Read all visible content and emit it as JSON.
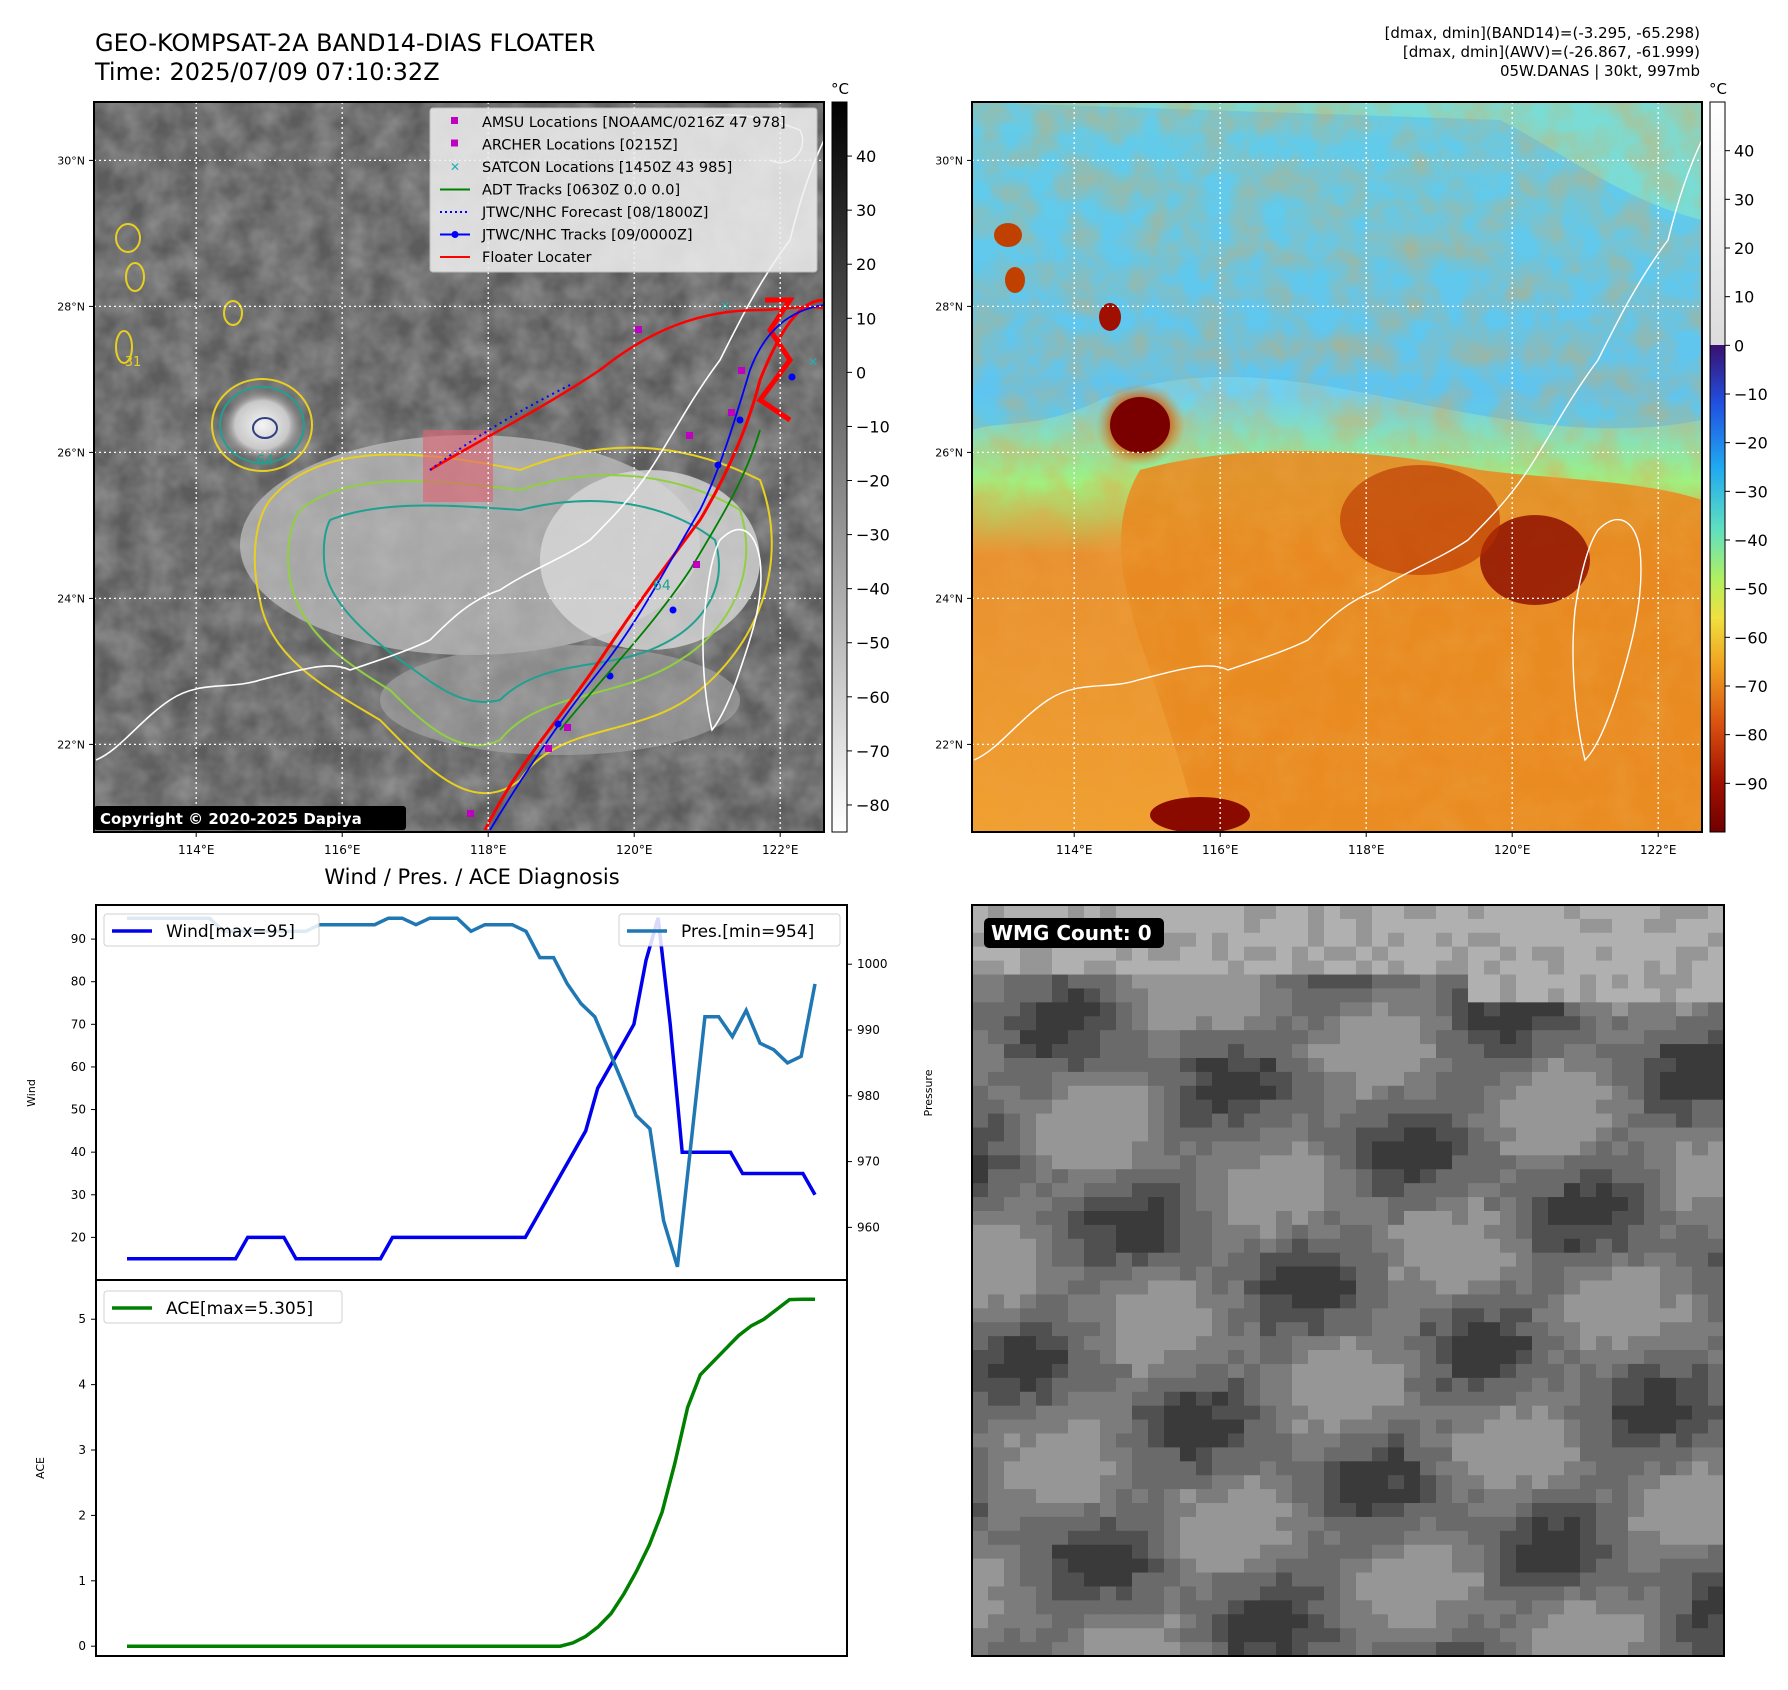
{
  "header": {
    "title_line1": "GEO-KOMPSAT-2A BAND14-DIAS FLOATER",
    "title_line2": "Time: 2025/07/09 07:10:32Z",
    "info_line1": "[dmax, dmin](BAND14)=(-3.295, -65.298)",
    "info_line2": "[dmax, dmin](AWV)=(-26.867, -61.999)",
    "info_line3": "05W.DANAS | 30kt, 997mb"
  },
  "maps": {
    "lat_labels": [
      "30°N",
      "28°N",
      "26°N",
      "24°N",
      "22°N"
    ],
    "lon_labels": [
      "114°E",
      "116°E",
      "118°E",
      "120°E",
      "122°E"
    ],
    "lat_values": [
      30,
      28,
      26,
      24,
      22
    ],
    "lon_values": [
      114,
      116,
      118,
      120,
      122
    ],
    "lat_range": [
      20.8,
      30.8
    ],
    "lon_range": [
      112.6,
      122.6
    ],
    "copyright": "Copyright © 2020-2025 Dapiya",
    "colorbar_unit": "°C",
    "left_colorbar_ticks": [
      40,
      30,
      20,
      10,
      0,
      -10,
      -20,
      -30,
      -40,
      -50,
      -60,
      -70,
      -80
    ],
    "left_colorbar_range": [
      -85,
      50
    ],
    "right_colorbar_ticks": [
      40,
      30,
      20,
      10,
      0,
      -10,
      -20,
      -30,
      -40,
      -50,
      -60,
      -70,
      -80,
      -90
    ],
    "right_colorbar_range": [
      -100,
      50
    ],
    "contour_labels": [
      "64",
      "64",
      "-31"
    ],
    "legend": [
      {
        "label": "AMSU Locations [NOAAMC/0216Z 47 978]",
        "color": "#c000c0",
        "marker": "square"
      },
      {
        "label": "ARCHER Locations [0215Z]",
        "color": "#c000c0",
        "marker": "square"
      },
      {
        "label": "SATCON Locations [1450Z 43 985]",
        "color": "#20b0b0",
        "marker": "x"
      },
      {
        "label": "ADT Tracks [0630Z 0.0 0.0]",
        "color": "#008000",
        "marker": "line"
      },
      {
        "label": "JTWC/NHC Forecast [08/1800Z]",
        "color": "#0000ff",
        "marker": "dotted"
      },
      {
        "label": "JTWC/NHC Tracks [09/0000Z]",
        "color": "#0000ff",
        "marker": "line-dot"
      },
      {
        "label": "Floater Locater",
        "color": "#ff0000",
        "marker": "line"
      }
    ]
  },
  "chart_data": [
    {
      "type": "line",
      "title": "Wind / Pres. / ACE Diagnosis",
      "ylabel": "Wind",
      "ylabel_right": "Pressure",
      "ylim": [
        10,
        98
      ],
      "ylim_right": [
        952,
        1009
      ],
      "yticks": [
        20,
        30,
        40,
        50,
        60,
        70,
        80,
        90
      ],
      "yticks_right": [
        960,
        970,
        980,
        990,
        1000
      ],
      "x_count": 60,
      "series": [
        {
          "name": "Wind[max=95]",
          "axis": "left",
          "color": "#0000ee",
          "values": [
            15,
            15,
            15,
            15,
            15,
            15,
            15,
            15,
            15,
            15,
            20,
            20,
            20,
            20,
            15,
            15,
            15,
            15,
            15,
            15,
            15,
            15,
            20,
            20,
            20,
            20,
            20,
            20,
            20,
            20,
            20,
            20,
            20,
            20,
            25,
            30,
            35,
            40,
            45,
            55,
            60,
            65,
            70,
            85,
            95,
            70,
            40,
            40,
            40,
            40,
            40,
            35,
            35,
            35,
            35,
            35,
            35,
            30
          ]
        },
        {
          "name": "Pres.[min=954]",
          "axis": "right",
          "color": "#1f77b4",
          "values": [
            1007,
            1007,
            1007,
            1007,
            1007,
            1007,
            1007,
            1005,
            1005,
            1005,
            1005,
            1005,
            1005,
            1005,
            1006,
            1006,
            1006,
            1006,
            1006,
            1007,
            1007,
            1006,
            1007,
            1007,
            1007,
            1005,
            1006,
            1006,
            1006,
            1005,
            1001,
            1001,
            997,
            994,
            992,
            987,
            982,
            977,
            975,
            961,
            954,
            973,
            992,
            992,
            989,
            993,
            988,
            987,
            985,
            986,
            997
          ]
        }
      ]
    },
    {
      "type": "line",
      "ylabel": "ACE",
      "ylim": [
        -0.15,
        5.6
      ],
      "yticks": [
        0,
        1,
        2,
        3,
        4,
        5
      ],
      "series": [
        {
          "name": "ACE[max=5.305]",
          "color": "#008000",
          "values": [
            0,
            0,
            0,
            0,
            0,
            0,
            0,
            0,
            0,
            0,
            0,
            0,
            0,
            0,
            0,
            0,
            0,
            0,
            0,
            0,
            0,
            0,
            0,
            0,
            0,
            0,
            0,
            0,
            0,
            0,
            0,
            0,
            0,
            0,
            0,
            0.05,
            0.15,
            0.3,
            0.5,
            0.8,
            1.15,
            1.55,
            2.05,
            2.8,
            3.65,
            4.15,
            4.35,
            4.55,
            4.75,
            4.9,
            5.0,
            5.15,
            5.3,
            5.305,
            5.305
          ]
        }
      ]
    }
  ],
  "wmg": {
    "label": "WMG Count: 0"
  }
}
